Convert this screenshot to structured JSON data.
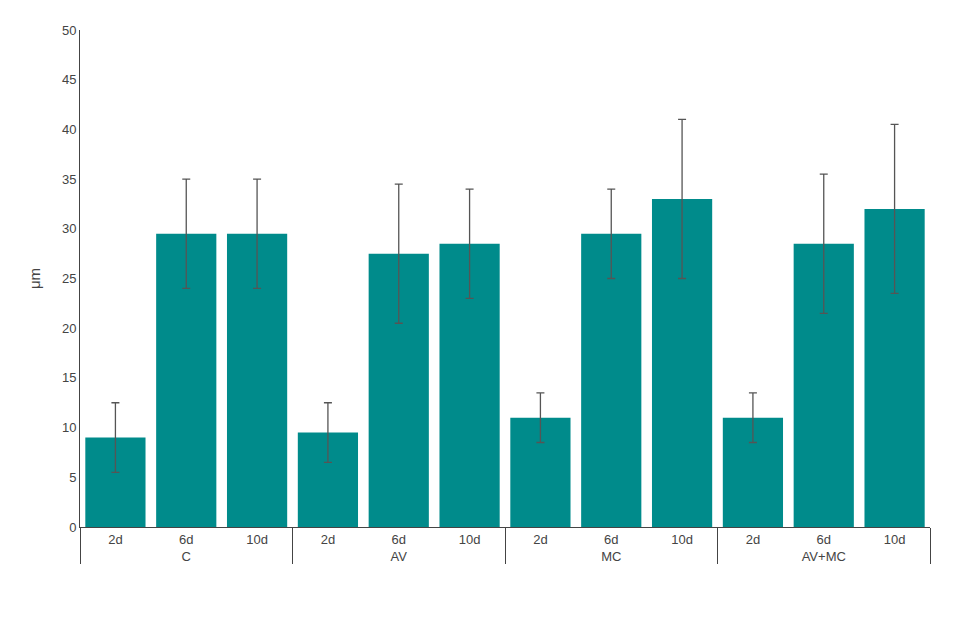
{
  "chart_data": {
    "type": "bar",
    "categories": [
      "C",
      "AV",
      "MC",
      "AV+MC"
    ],
    "subcategories": [
      "2d",
      "6d",
      "10d"
    ],
    "values": [
      [
        9.0,
        29.5,
        29.5
      ],
      [
        9.5,
        27.5,
        28.5
      ],
      [
        11.0,
        29.5,
        33.0
      ],
      [
        11.0,
        28.5,
        32.0
      ]
    ],
    "errors": [
      [
        3.5,
        5.5,
        5.5
      ],
      [
        3.0,
        7.0,
        5.5
      ],
      [
        2.5,
        4.5,
        8.0
      ],
      [
        2.5,
        7.0,
        8.5
      ]
    ],
    "color": "#008B8B",
    "ylabel": "μm",
    "ylim": [
      0,
      50
    ],
    "yticks": [
      0,
      5,
      10,
      15,
      20,
      25,
      30,
      35,
      40,
      45,
      50
    ],
    "grid": false
  }
}
